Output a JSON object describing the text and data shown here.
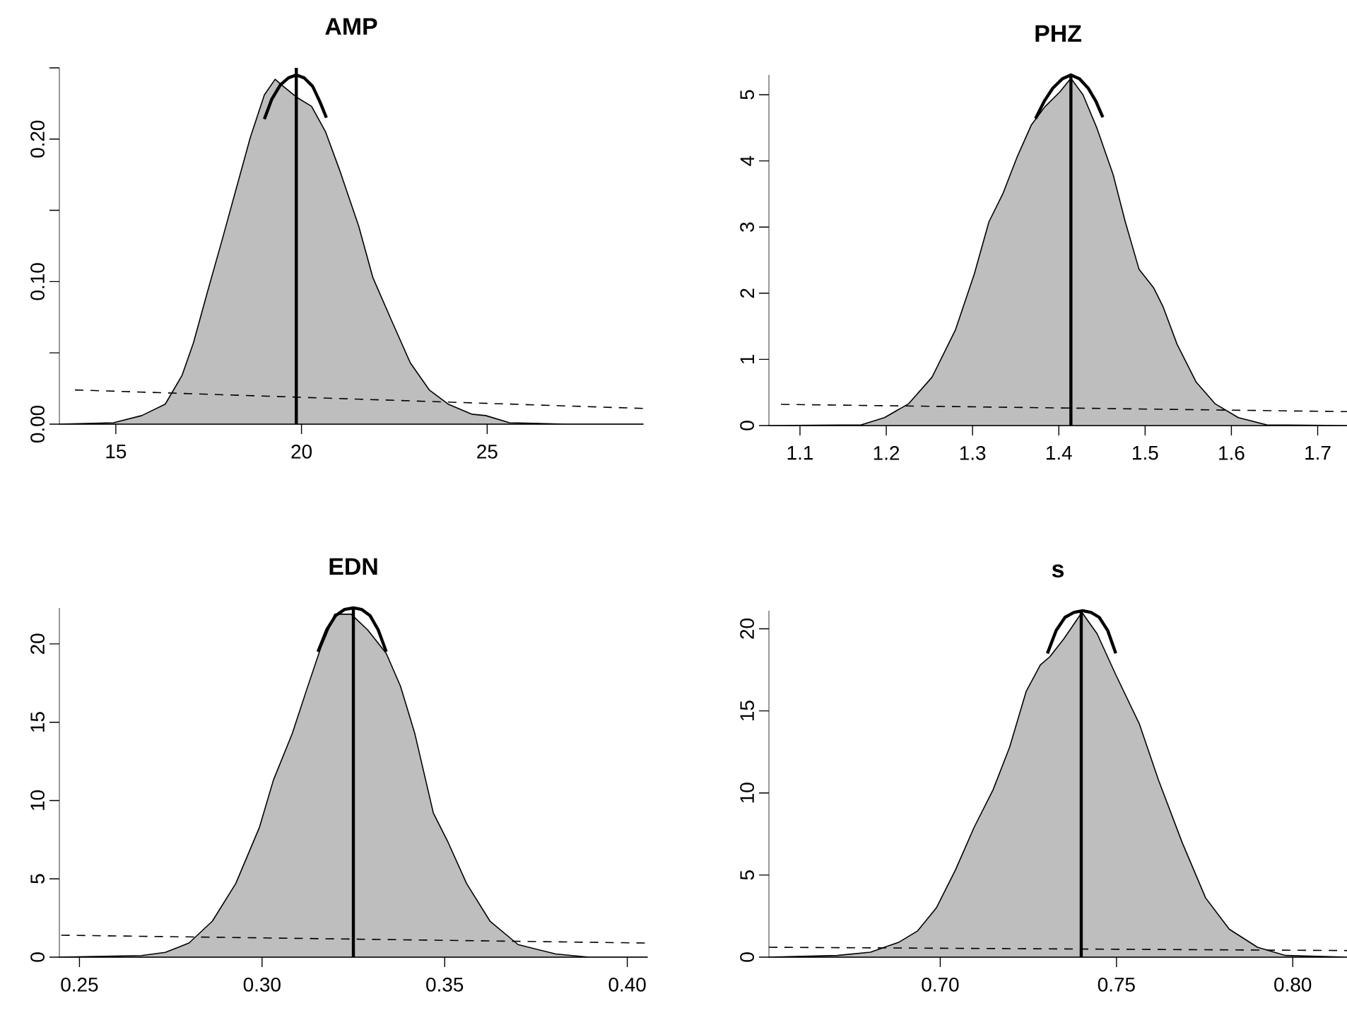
{
  "chart_data": [
    {
      "type": "area",
      "title": "AMP",
      "xlim": [
        13.48,
        29.2
      ],
      "ylim": [
        0,
        0.25
      ],
      "xticks": [
        15,
        20,
        25
      ],
      "yticks": [
        {
          "value": 0,
          "label": "0.00"
        },
        {
          "value": 0.05,
          "label": null
        },
        {
          "value": 0.1,
          "label": "0.10"
        },
        {
          "value": 0.15,
          "label": null
        },
        {
          "value": 0.2,
          "label": "0.20"
        },
        {
          "value": 0.25,
          "label": null
        }
      ],
      "series": [
        {
          "color": "#bebebe",
          "x": [
            13.48,
            14.94,
            15.7,
            16.33,
            16.78,
            17.09,
            17.47,
            17.86,
            18.24,
            18.62,
            19.0,
            19.29,
            19.51,
            19.89,
            20.27,
            20.65,
            21.03,
            21.54,
            21.92,
            22.42,
            22.93,
            23.44,
            23.95,
            24.58,
            24.96,
            25.6,
            27.1,
            29.2
          ],
          "values": [
            0,
            0.001,
            0.006,
            0.014,
            0.034,
            0.057,
            0.093,
            0.129,
            0.165,
            0.201,
            0.231,
            0.242,
            0.237,
            0.229,
            0.223,
            0.205,
            0.178,
            0.139,
            0.103,
            0.073,
            0.043,
            0.024,
            0.014,
            0.007,
            0.006,
            0.001,
            0,
            0
          ]
        },
        {
          "type": "line",
          "color": "#000000",
          "line_style": "dashed",
          "x": [
            13.9,
            29.2
          ],
          "values": [
            0.024,
            0.011
          ]
        },
        {
          "type": "line",
          "color": "#000000",
          "line_style": "solid",
          "x": [
            19.0,
            19.2,
            19.43,
            19.65,
            19.86,
            20.07,
            20.3,
            20.5,
            20.67
          ],
          "values": [
            0.214,
            0.228,
            0.238,
            0.243,
            0.245,
            0.243,
            0.237,
            0.226,
            0.215
          ]
        }
      ],
      "ref_lines": [
        {
          "axis": "x",
          "value": 19.86,
          "color": "#000000"
        }
      ]
    },
    {
      "type": "area",
      "title": "PHZ",
      "xlim": [
        1.064,
        1.734
      ],
      "ylim": [
        0,
        5.3
      ],
      "xticks": [
        1.1,
        1.2,
        1.3,
        1.4,
        1.5,
        1.6,
        1.7
      ],
      "yticks": [
        0,
        1,
        2,
        3,
        4,
        5
      ],
      "series": [
        {
          "color": "#bebebe",
          "x": [
            1.064,
            1.171,
            1.198,
            1.226,
            1.253,
            1.28,
            1.302,
            1.319,
            1.335,
            1.352,
            1.368,
            1.384,
            1.401,
            1.414,
            1.428,
            1.444,
            1.463,
            1.477,
            1.493,
            1.51,
            1.521,
            1.537,
            1.559,
            1.581,
            1.608,
            1.641,
            1.734
          ],
          "values": [
            0,
            0.01,
            0.12,
            0.33,
            0.73,
            1.44,
            2.29,
            3.08,
            3.5,
            4.07,
            4.54,
            4.82,
            5.04,
            5.25,
            5.0,
            4.5,
            3.79,
            3.08,
            2.36,
            2.08,
            1.79,
            1.23,
            0.66,
            0.33,
            0.12,
            0.01,
            0
          ]
        },
        {
          "type": "line",
          "color": "#000000",
          "line_style": "dashed",
          "x": [
            1.078,
            1.734
          ],
          "values": [
            0.32,
            0.21
          ]
        },
        {
          "type": "line",
          "color": "#000000",
          "line_style": "solid",
          "x": [
            1.373,
            1.383,
            1.393,
            1.404,
            1.414,
            1.424,
            1.434,
            1.443,
            1.451
          ],
          "values": [
            4.64,
            4.9,
            5.1,
            5.24,
            5.3,
            5.24,
            5.1,
            4.9,
            4.66
          ]
        }
      ],
      "ref_lines": [
        {
          "axis": "x",
          "value": 1.414,
          "color": "#000000"
        }
      ]
    },
    {
      "type": "area",
      "title": "EDN",
      "xlim": [
        0.2445,
        0.4055
      ],
      "ylim": [
        0,
        22.3
      ],
      "xticks": [
        0.25,
        {
          "value": 0.3,
          "label": "0.30"
        },
        0.35,
        {
          "value": 0.4,
          "label": "0.40"
        }
      ],
      "yticks": [
        0,
        5,
        10,
        15,
        20
      ],
      "series": [
        {
          "color": "#bebebe",
          "x": [
            0.2445,
            0.267,
            0.2735,
            0.28,
            0.2864,
            0.2928,
            0.2993,
            0.3031,
            0.3083,
            0.3121,
            0.316,
            0.3199,
            0.3244,
            0.3289,
            0.334,
            0.3379,
            0.3418,
            0.3469,
            0.3508,
            0.356,
            0.3624,
            0.3701,
            0.3804,
            0.3894,
            0.4055
          ],
          "values": [
            0,
            0.1,
            0.3,
            0.9,
            2.3,
            4.7,
            8.3,
            11.3,
            14.3,
            17.0,
            19.7,
            21.9,
            21.9,
            20.9,
            19.4,
            17.3,
            14.3,
            9.2,
            7.4,
            4.7,
            2.3,
            0.8,
            0.2,
            0,
            0
          ]
        },
        {
          "type": "line",
          "color": "#000000",
          "line_style": "dashed",
          "x": [
            0.245,
            0.4049
          ],
          "values": [
            1.4,
            0.9
          ]
        },
        {
          "type": "line",
          "color": "#000000",
          "line_style": "solid",
          "x": [
            0.3153,
            0.3177,
            0.3201,
            0.3226,
            0.325,
            0.3273,
            0.3296,
            0.3318,
            0.334
          ],
          "values": [
            19.5,
            20.9,
            21.8,
            22.2,
            22.3,
            22.2,
            21.8,
            20.9,
            19.5
          ]
        }
      ],
      "ref_lines": [
        {
          "axis": "x",
          "value": 0.325,
          "color": "#000000"
        }
      ]
    },
    {
      "type": "area",
      "title": "s",
      "xlim": [
        0.6514,
        0.8154
      ],
      "ylim": [
        0,
        21.1
      ],
      "xticks": [
        {
          "value": 0.7,
          "label": "0.70"
        },
        0.75,
        {
          "value": 0.8,
          "label": "0.80"
        }
      ],
      "yticks": [
        0,
        5,
        10,
        15,
        20
      ],
      "series": [
        {
          "color": "#bebebe",
          "x": [
            0.6514,
            0.6708,
            0.6802,
            0.6882,
            0.6936,
            0.6989,
            0.7043,
            0.7096,
            0.715,
            0.7197,
            0.7244,
            0.7284,
            0.7311,
            0.7351,
            0.7402,
            0.7445,
            0.7498,
            0.7565,
            0.7619,
            0.7686,
            0.7753,
            0.782,
            0.79,
            0.798,
            0.8154
          ],
          "values": [
            0,
            0.1,
            0.3,
            0.9,
            1.6,
            3.0,
            5.3,
            7.9,
            10.2,
            12.8,
            16.2,
            17.8,
            18.3,
            19.4,
            21.0,
            19.7,
            17.2,
            14.2,
            10.8,
            7.0,
            3.6,
            1.7,
            0.6,
            0.1,
            0
          ]
        },
        {
          "type": "line",
          "color": "#000000",
          "line_style": "dashed",
          "x": [
            0.6514,
            0.8154
          ],
          "values": [
            0.6,
            0.4
          ]
        },
        {
          "type": "line",
          "color": "#000000",
          "line_style": "solid",
          "x": [
            0.7304,
            0.7329,
            0.7354,
            0.7379,
            0.7404,
            0.7428,
            0.7451,
            0.7475,
            0.7498
          ],
          "values": [
            18.5,
            19.9,
            20.7,
            21.0,
            21.1,
            21.0,
            20.7,
            19.9,
            18.5
          ]
        }
      ],
      "ref_lines": [
        {
          "axis": "x",
          "value": 0.74,
          "color": "#000000"
        }
      ]
    }
  ]
}
